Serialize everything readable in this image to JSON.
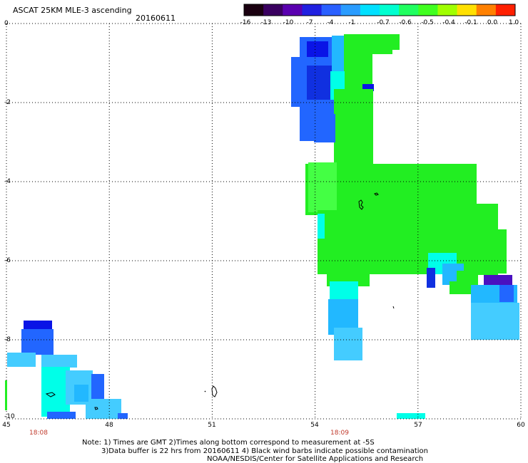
{
  "title": "ASCAT 25KM MLE-3 ascending",
  "date": "20160611",
  "colorbar": {
    "labels": [
      "-16",
      "-13",
      "-10",
      "-7",
      "-4",
      "-1",
      "-0.7",
      "-0.6",
      "-0.5",
      "-0.4",
      "-0.1",
      "0.0",
      "1.0"
    ],
    "colors": [
      "#1a0010",
      "#3a0060",
      "#5a00b0",
      "#2020e0",
      "#2a60ff",
      "#2a9cff",
      "#00e0ff",
      "#00ffd0",
      "#20ff60",
      "#40ff20",
      "#a0ff00",
      "#ffe000",
      "#ff8000",
      "#ff2000"
    ]
  },
  "axes": {
    "x_ticks": [
      "45",
      "48",
      "51",
      "54",
      "57",
      "60"
    ],
    "y_ticks": [
      "0",
      "-2",
      "-4",
      "-6",
      "-8",
      "-10"
    ],
    "x_range": [
      45,
      60
    ],
    "y_range": [
      -10,
      0
    ]
  },
  "times": [
    {
      "label": "18:08",
      "lon": 45.9
    },
    {
      "label": "18:09",
      "lon": 55.6
    }
  ],
  "notes": {
    "line1": "Note: 1) Times are GMT 2)Times along bottom correspond to measurement at -5S",
    "line2": "3)Data buffer is 22 hrs from 20160611 4) Black wind barbs indicate possible contamination",
    "line3": "NOAA/NESDIS/Center for Satellite Applications and Research"
  },
  "colors": {
    "green": "#22ee22",
    "light_green": "#44ff44",
    "cyan": "#00ffe8",
    "sky": "#22b8ff",
    "light_sky": "#44ccff",
    "blue": "#2266ff",
    "dark_blue": "#1030e0",
    "navy": "#0a14e6",
    "purple": "#4a10c0"
  }
}
